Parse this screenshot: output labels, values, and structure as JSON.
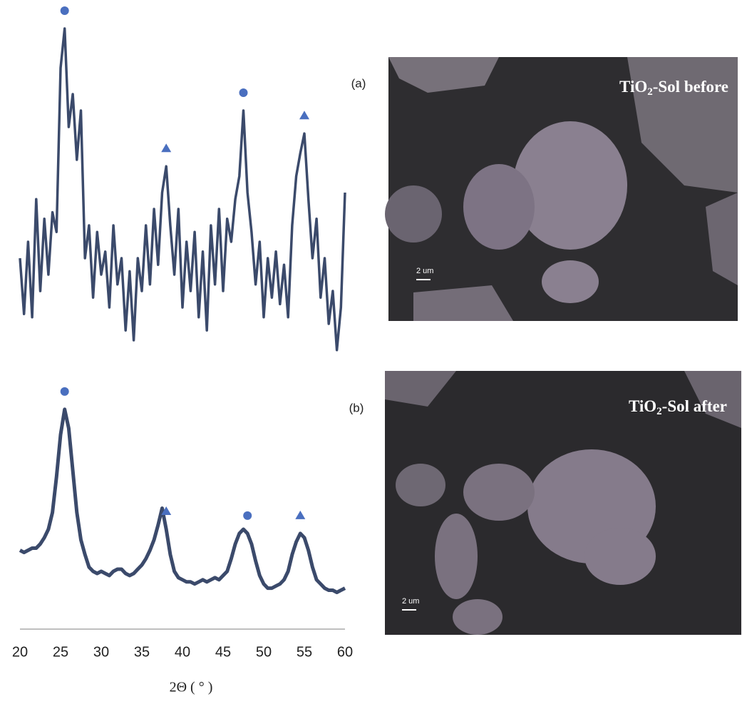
{
  "chart_data": [
    {
      "type": "line",
      "color": "#3b4a6b",
      "x": [
        20,
        20.5,
        21,
        21.5,
        22,
        22.5,
        23,
        23.5,
        24,
        24.5,
        25,
        25.5,
        26,
        26.5,
        27,
        27.5,
        28,
        28.5,
        29,
        29.5,
        30,
        30.5,
        31,
        31.5,
        32,
        32.5,
        33,
        33.5,
        34,
        34.5,
        35,
        35.5,
        36,
        36.5,
        37,
        37.5,
        38,
        38.5,
        39,
        39.5,
        40,
        40.5,
        41,
        41.5,
        42,
        42.5,
        43,
        43.5,
        44,
        44.5,
        45,
        45.5,
        46,
        46.5,
        47,
        47.5,
        48,
        48.5,
        49,
        49.5,
        50,
        50.5,
        51,
        51.5,
        52,
        52.5,
        53,
        53.5,
        54,
        54.5,
        55,
        55.5,
        56,
        56.5,
        57,
        57.5,
        58,
        58.5,
        59,
        59.5,
        60
      ],
      "values": [
        30,
        13,
        35,
        12,
        48,
        20,
        42,
        25,
        44,
        38,
        88,
        100,
        70,
        80,
        60,
        75,
        30,
        40,
        18,
        38,
        25,
        32,
        15,
        40,
        22,
        30,
        8,
        26,
        5,
        30,
        20,
        40,
        22,
        45,
        28,
        50,
        58,
        40,
        25,
        45,
        15,
        35,
        20,
        38,
        12,
        32,
        8,
        40,
        22,
        45,
        20,
        42,
        35,
        48,
        55,
        75,
        50,
        38,
        22,
        35,
        12,
        30,
        18,
        32,
        16,
        28,
        12,
        40,
        55,
        62,
        68,
        48,
        30,
        42,
        18,
        30,
        10,
        20,
        2,
        15,
        50
      ],
      "xlim": [
        20,
        60
      ],
      "ylim": [
        0,
        100
      ],
      "peak_markers": [
        {
          "x": 25.5,
          "shape": "circle"
        },
        {
          "x": 38,
          "shape": "triangle"
        },
        {
          "x": 47.5,
          "shape": "circle"
        },
        {
          "x": 55,
          "shape": "triangle"
        }
      ],
      "marker_color": "#4a6fbf"
    },
    {
      "type": "line",
      "color": "#3b4a6b",
      "x": [
        20,
        20.5,
        21,
        21.5,
        22,
        22.5,
        23,
        23.5,
        24,
        24.5,
        25,
        25.5,
        26,
        26.5,
        27,
        27.5,
        28,
        28.5,
        29,
        29.5,
        30,
        30.5,
        31,
        31.5,
        32,
        32.5,
        33,
        33.5,
        34,
        34.5,
        35,
        35.5,
        36,
        36.5,
        37,
        37.5,
        38,
        38.5,
        39,
        39.5,
        40,
        40.5,
        41,
        41.5,
        42,
        42.5,
        43,
        43.5,
        44,
        44.5,
        45,
        45.5,
        46,
        46.5,
        47,
        47.5,
        48,
        48.5,
        49,
        49.5,
        50,
        50.5,
        51,
        51.5,
        52,
        52.5,
        53,
        53.5,
        54,
        54.5,
        55,
        55.5,
        56,
        56.5,
        57,
        57.5,
        58,
        58.5,
        59,
        59.5,
        60
      ],
      "values": [
        30,
        29,
        30,
        31,
        31,
        33,
        36,
        40,
        48,
        65,
        85,
        97,
        88,
        68,
        48,
        35,
        28,
        22,
        20,
        19,
        20,
        19,
        18,
        20,
        21,
        21,
        19,
        18,
        19,
        21,
        23,
        26,
        30,
        35,
        42,
        50,
        40,
        28,
        20,
        17,
        16,
        15,
        15,
        14,
        15,
        16,
        15,
        16,
        17,
        16,
        18,
        20,
        26,
        33,
        38,
        40,
        38,
        33,
        25,
        18,
        14,
        12,
        12,
        13,
        14,
        16,
        20,
        28,
        34,
        38,
        36,
        30,
        22,
        16,
        14,
        12,
        11,
        11,
        10,
        11,
        12
      ],
      "xlim": [
        20,
        60
      ],
      "ylim": [
        0,
        100
      ],
      "xticks": [
        20,
        25,
        30,
        35,
        40,
        45,
        50,
        55,
        60
      ],
      "xlabel": "2Θ ( ° )",
      "peak_markers": [
        {
          "x": 25.5,
          "shape": "circle"
        },
        {
          "x": 38,
          "shape": "triangle"
        },
        {
          "x": 48,
          "shape": "circle"
        },
        {
          "x": 54.5,
          "shape": "triangle"
        }
      ],
      "marker_color": "#4a6fbf"
    }
  ],
  "panels": [
    {
      "tag": "(a)",
      "caption": {
        "prefix": "TiO",
        "subscript": "2",
        "suffix": "-Sol before"
      },
      "scale_bar": "2 um"
    },
    {
      "tag": "(b)",
      "caption": {
        "prefix": "TiO",
        "subscript": "2",
        "suffix": "-Sol after"
      },
      "scale_bar": "2 um"
    }
  ]
}
